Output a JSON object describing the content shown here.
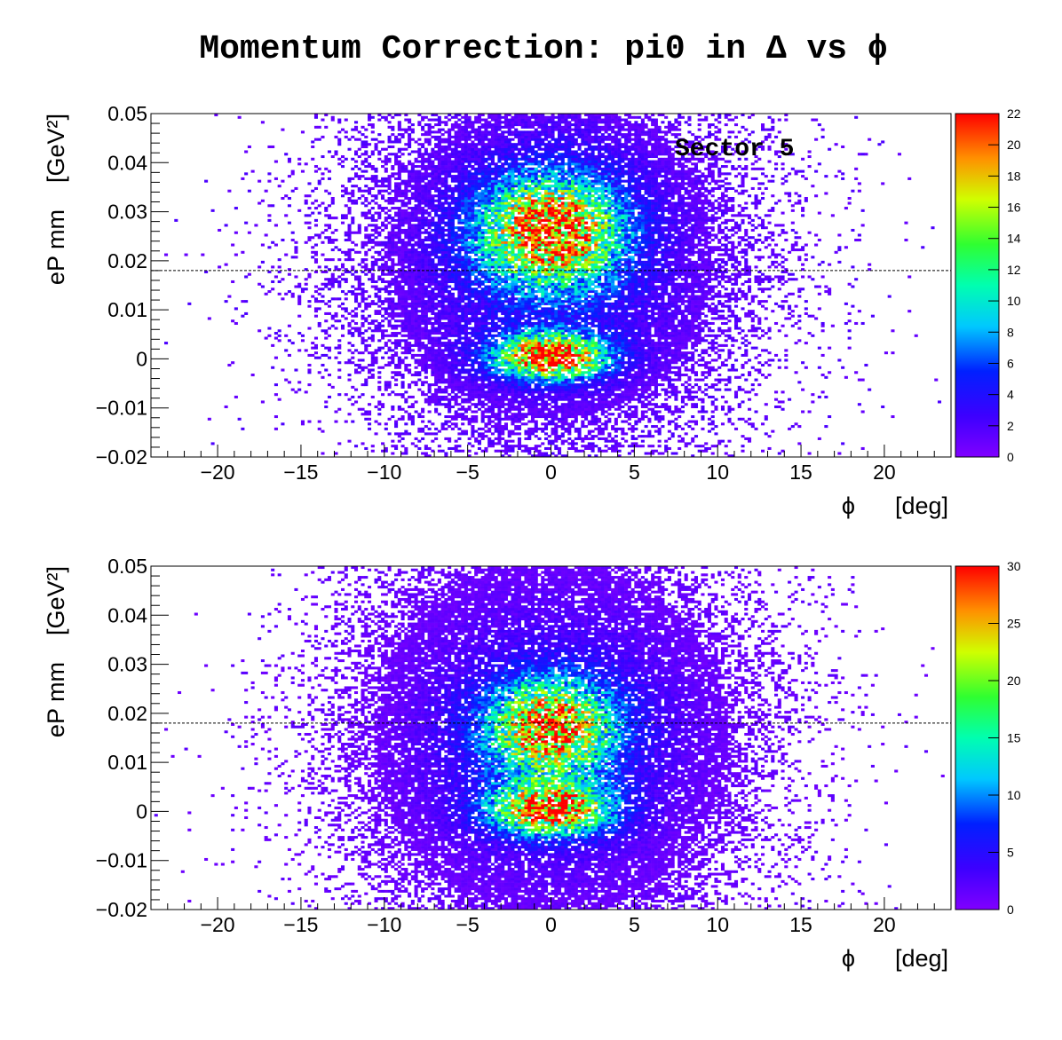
{
  "title": "Momentum Correction: pi0 in Δ vs ϕ",
  "chart_data": [
    {
      "type": "heatmap",
      "annotation": "Sector 5",
      "xlabel": "ϕ      [deg]",
      "ylabel": "eP mm    [GeV²]",
      "xlim": [
        -24,
        24
      ],
      "ylim": [
        -0.02,
        0.05
      ],
      "x_ticks": [
        -20,
        -15,
        -10,
        -5,
        0,
        5,
        10,
        15,
        20
      ],
      "x_tick_labels": [
        "−20",
        "−15",
        "−10",
        "−5",
        "0",
        "5",
        "10",
        "15",
        "20"
      ],
      "y_ticks": [
        -0.02,
        -0.01,
        0,
        0.01,
        0.02,
        0.03,
        0.04,
        0.05
      ],
      "y_tick_labels": [
        "−0.02",
        "−0.01",
        "0",
        "0.01",
        "0.02",
        "0.03",
        "0.04",
        "0.05"
      ],
      "reference_line_y": 0.018,
      "colorbar": {
        "min": 0,
        "max": 22,
        "ticks": [
          0,
          2,
          4,
          6,
          8,
          10,
          12,
          14,
          16,
          18,
          20,
          22
        ],
        "tick_labels": [
          "0",
          "2",
          "4",
          "6",
          "8",
          "10",
          "12",
          "14",
          "16",
          "18",
          "20",
          "22"
        ]
      },
      "clusters": [
        {
          "x_center": 0,
          "y_center": 0.026,
          "x_width": 2.8,
          "y_width": 0.0075,
          "peak": 19
        },
        {
          "x_center": 0,
          "y_center": 0.0005,
          "x_width": 2.2,
          "y_width": 0.003,
          "peak": 22
        }
      ],
      "background": {
        "x_width": 6.5,
        "y_width": 0.022,
        "y_center": 0.02,
        "level": 3.5
      }
    },
    {
      "type": "heatmap",
      "xlabel": "ϕ      [deg]",
      "ylabel": "eP mm    [GeV²]",
      "xlim": [
        -24,
        24
      ],
      "ylim": [
        -0.02,
        0.05
      ],
      "x_ticks": [
        -20,
        -15,
        -10,
        -5,
        0,
        5,
        10,
        15,
        20
      ],
      "x_tick_labels": [
        "−20",
        "−15",
        "−10",
        "−5",
        "0",
        "5",
        "10",
        "15",
        "20"
      ],
      "y_ticks": [
        -0.02,
        -0.01,
        0,
        0.01,
        0.02,
        0.03,
        0.04,
        0.05
      ],
      "y_tick_labels": [
        "−0.02",
        "−0.01",
        "0",
        "0.01",
        "0.02",
        "0.03",
        "0.04",
        "0.05"
      ],
      "reference_line_y": 0.018,
      "colorbar": {
        "min": 0,
        "max": 30,
        "ticks": [
          0,
          5,
          10,
          15,
          20,
          25,
          30
        ],
        "tick_labels": [
          "0",
          "5",
          "10",
          "15",
          "20",
          "25",
          "30"
        ]
      },
      "clusters": [
        {
          "x_center": 0,
          "y_center": 0.017,
          "x_width": 2.6,
          "y_width": 0.0065,
          "peak": 24
        },
        {
          "x_center": 0,
          "y_center": 0.0005,
          "x_width": 2.4,
          "y_width": 0.0035,
          "peak": 26
        }
      ],
      "background": {
        "x_width": 6.5,
        "y_width": 0.022,
        "y_center": 0.015,
        "level": 4.5
      }
    }
  ]
}
